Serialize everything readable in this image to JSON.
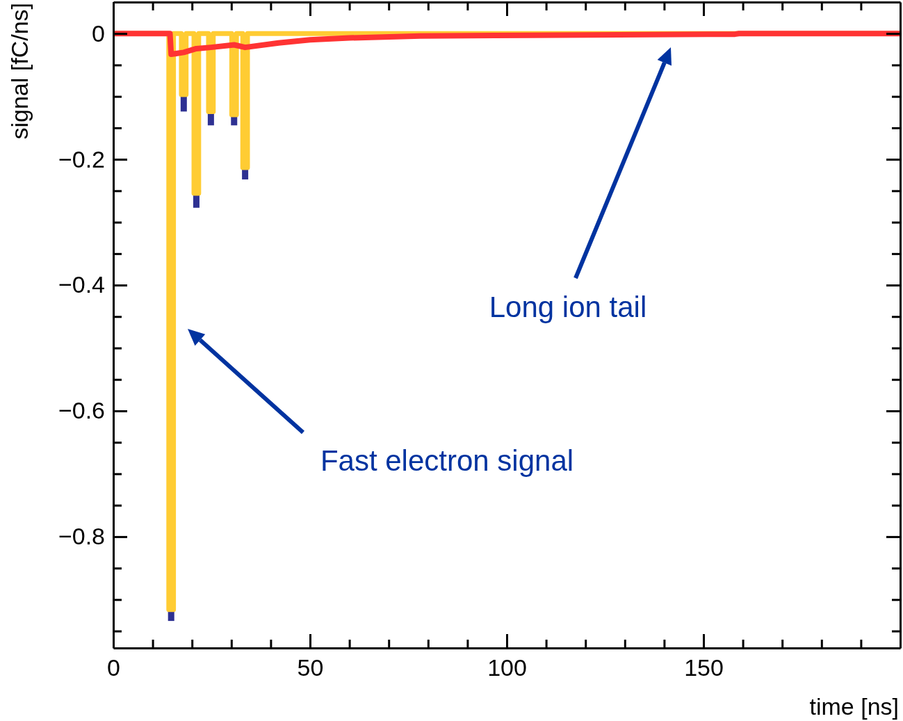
{
  "chart_data": {
    "type": "line",
    "xlabel": "time [ns]",
    "ylabel": "signal [fC/ns]",
    "xlim": [
      0,
      200
    ],
    "ylim": [
      -0.977,
      0.05
    ],
    "xticks": [
      0,
      {
        "value": 10,
        "label": null
      },
      {
        "value": 20,
        "label": null
      },
      {
        "value": 30,
        "label": null
      },
      {
        "value": 40,
        "label": null
      },
      50,
      {
        "value": 60,
        "label": null
      },
      {
        "value": 70,
        "label": null
      },
      {
        "value": 80,
        "label": null
      },
      {
        "value": 90,
        "label": null
      },
      100,
      {
        "value": 110,
        "label": null
      },
      {
        "value": 120,
        "label": null
      },
      {
        "value": 130,
        "label": null
      },
      {
        "value": 140,
        "label": null
      },
      150,
      {
        "value": 160,
        "label": null
      },
      {
        "value": 170,
        "label": null
      },
      {
        "value": 180,
        "label": null
      },
      {
        "value": 190,
        "label": null
      }
    ],
    "yticks": [
      0,
      {
        "value": -0.05,
        "label": null
      },
      {
        "value": -0.1,
        "label": null
      },
      {
        "value": -0.15,
        "label": null
      },
      {
        "value": -0.2,
        "label": "−0.2"
      },
      {
        "value": -0.25,
        "label": null
      },
      {
        "value": -0.3,
        "label": null
      },
      {
        "value": -0.35,
        "label": null
      },
      {
        "value": -0.4,
        "label": "−0.4"
      },
      {
        "value": -0.45,
        "label": null
      },
      {
        "value": -0.5,
        "label": null
      },
      {
        "value": -0.55,
        "label": null
      },
      {
        "value": -0.6,
        "label": "−0.6"
      },
      {
        "value": -0.65,
        "label": null
      },
      {
        "value": -0.7,
        "label": null
      },
      {
        "value": -0.75,
        "label": null
      },
      {
        "value": -0.8,
        "label": "−0.8"
      },
      {
        "value": -0.85,
        "label": null
      },
      {
        "value": -0.9,
        "label": null
      },
      {
        "value": -0.95,
        "label": null
      }
    ],
    "grid": false,
    "line_style": "solid",
    "marker": "none",
    "series": [
      {
        "type": "bar",
        "color": "#2e3192",
        "x": [
          14.7,
          17.9,
          21.1,
          24.8,
          30.7,
          33.5
        ],
        "base": [
          -0.916,
          -0.097,
          -0.254,
          -0.124,
          -0.129,
          -0.213
        ],
        "values": [
          -0.018,
          -0.027,
          -0.023,
          -0.022,
          -0.017,
          -0.019
        ]
      },
      {
        "color": "#ffcc33",
        "x": [
          0,
          14.1,
          14.1,
          15.3,
          15.3,
          17.3,
          17.3,
          18.5,
          18.5,
          20.5,
          20.5,
          21.7,
          21.7,
          24.2,
          24.2,
          25.4,
          25.4,
          30.1,
          30.1,
          31.3,
          31.3,
          32.9,
          32.9,
          34.1,
          34.1,
          200
        ],
        "values": [
          0,
          0,
          -0.916,
          -0.916,
          0,
          0,
          -0.097,
          -0.097,
          0,
          0,
          -0.254,
          -0.254,
          0,
          0,
          -0.124,
          -0.124,
          0,
          0,
          -0.129,
          -0.129,
          0,
          0,
          -0.213,
          -0.213,
          0,
          0
        ]
      },
      {
        "color": "#ff3333",
        "x": [
          0,
          14.4,
          14.7,
          17.9,
          21.1,
          24.8,
          30.7,
          33.5,
          42,
          50,
          60,
          78,
          97,
          158,
          159,
          200
        ],
        "values": [
          0,
          0,
          -0.033,
          -0.03,
          -0.024,
          -0.022,
          -0.018,
          -0.022,
          -0.015,
          -0.01,
          -0.007,
          -0.004,
          -0.003,
          -0.001,
          0,
          0
        ]
      }
    ],
    "annotations": [
      "Long ion tail",
      "Fast electron signal"
    ]
  }
}
